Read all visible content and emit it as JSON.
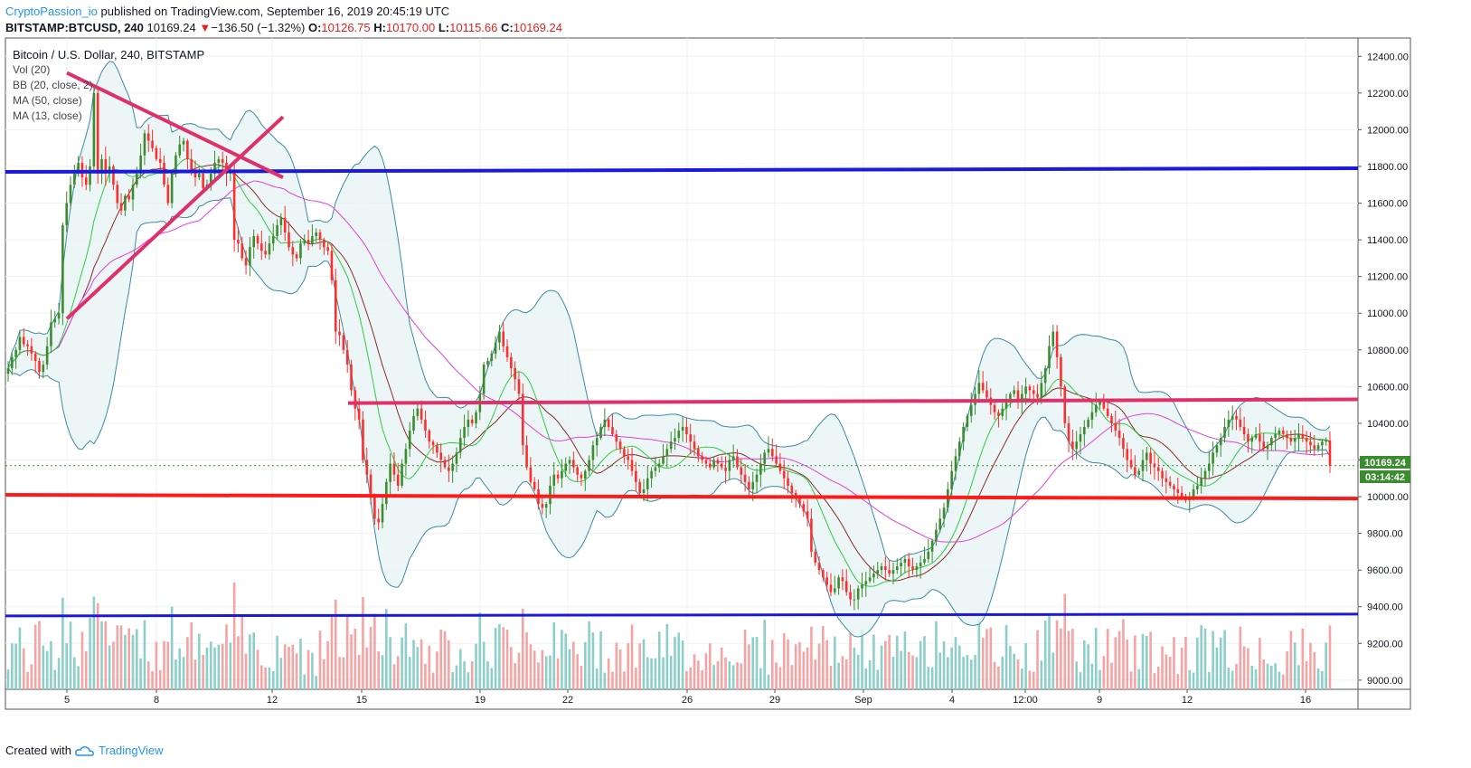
{
  "header": {
    "author": "CryptoPassion_io",
    "published_text": " published on TradingView.com, September 16, 2019 20:45:19 UTC",
    "symbol": "BITSTAMP:BTCUSD, 240",
    "last": "10169.24",
    "arrow": "▼",
    "change": "−136.50 (−1.32%)",
    "o_label": "O:",
    "o_value": "10126.75",
    "h_label": "H:",
    "h_value": "10170.00",
    "l_label": "L:",
    "l_value": "10115.66",
    "c_label": "C:",
    "c_value": "10169.24"
  },
  "legend": {
    "title": "Bitcoin / U.S. Dollar, 240, BITSTAMP",
    "items": [
      "Vol (20)",
      "BB (20, close, 2)",
      "MA (50, close)",
      "MA (13, close)"
    ]
  },
  "footer": {
    "created_with": "Created with",
    "brand": "TradingView"
  },
  "price_badge": {
    "price": "10169.24",
    "countdown": "03:14:42"
  },
  "colors": {
    "bull": "#3a8c2e",
    "bear": "#ff2d2d",
    "bb_band": "#3b8aa0",
    "bb_fill": "#e8f4f4",
    "ma50": "#e040e0",
    "ma13": "#2ecc40",
    "basis": "#8b2a2a",
    "res_blue": "#1a1adf",
    "mag_line": "#e0306a",
    "red_line": "#ff1a1a",
    "vol_up": "#8ccfc8",
    "vol_down": "#f5a3a3"
  },
  "chart_data": {
    "type": "candlestick",
    "title": "Bitcoin / U.S. Dollar, 240, BITSTAMP",
    "ylim": [
      8950,
      12500
    ],
    "y_ticks": [
      "12400.00",
      "12200.00",
      "12000.00",
      "11800.00",
      "11600.00",
      "11400.00",
      "11200.00",
      "11000.00",
      "10800.00",
      "10600.00",
      "10400.00",
      "10200.00",
      "10000.00",
      "9800.00",
      "9600.00",
      "9400.00",
      "9200.00",
      "9000.00"
    ],
    "x_ticks": [
      "5",
      "8",
      "12",
      "15",
      "19",
      "22",
      "26",
      "29",
      "Sep",
      "4",
      "12:00",
      "9",
      "12",
      "16"
    ],
    "candles_close": [
      10700,
      10760,
      10800,
      10870,
      10830,
      10820,
      10780,
      10740,
      10680,
      10720,
      10820,
      10950,
      10970,
      11000,
      11480,
      11600,
      11700,
      11760,
      11820,
      11740,
      11700,
      11800,
      12200,
      11760,
      11840,
      11760,
      11800,
      11700,
      11600,
      11560,
      11640,
      11620,
      11700,
      11760,
      11860,
      11980,
      11940,
      11900,
      11840,
      11820,
      11700,
      11600,
      11760,
      11860,
      11920,
      11940,
      11840,
      11780,
      11740,
      11760,
      11680,
      11700,
      11760,
      11820,
      11840,
      11820,
      11760,
      11780,
      11400,
      11380,
      11300,
      11260,
      11360,
      11420,
      11380,
      11340,
      11320,
      11380,
      11420,
      11480,
      11520,
      11440,
      11360,
      11320,
      11300,
      11380,
      11400,
      11380,
      11420,
      11440,
      11400,
      11360,
      11340,
      11180,
      10900,
      10880,
      10800,
      10720,
      10580,
      10480,
      10420,
      10200,
      10120,
      10000,
      9880,
      9860,
      9960,
      10080,
      10180,
      10120,
      10060,
      10180,
      10260,
      10360,
      10440,
      10480,
      10420,
      10360,
      10300,
      10280,
      10240,
      10200,
      10160,
      10140,
      10180,
      10240,
      10320,
      10380,
      10420,
      10400,
      10460,
      10560,
      10720,
      10740,
      10780,
      10840,
      10900,
      10820,
      10760,
      10700,
      10640,
      10560,
      10280,
      10160,
      10080,
      10040,
      9960,
      9940,
      9960,
      10060,
      10120,
      10100,
      10140,
      10180,
      10200,
      10160,
      10120,
      10100,
      10140,
      10200,
      10280,
      10320,
      10380,
      10420,
      10380,
      10340,
      10300,
      10260,
      10220,
      10200,
      10140,
      10080,
      10020,
      10040,
      10100,
      10140,
      10160,
      10180,
      10220,
      10260,
      10300,
      10320,
      10360,
      10380,
      10340,
      10300,
      10260,
      10220,
      10200,
      10180,
      10160,
      10200,
      10180,
      10160,
      10140,
      10200,
      10220,
      10160,
      10120,
      10080,
      10040,
      10080,
      10120,
      10180,
      10240,
      10260,
      10220,
      10180,
      10140,
      10100,
      10060,
      10020,
      10000,
      9960,
      9920,
      9880,
      9700,
      9640,
      9600,
      9560,
      9520,
      9480,
      9500,
      9560,
      9540,
      9480,
      9440,
      9440,
      9500,
      9520,
      9540,
      9560,
      9580,
      9600,
      9620,
      9600,
      9580,
      9600,
      9620,
      9640,
      9660,
      9620,
      9600,
      9620,
      9640,
      9660,
      9700,
      9760,
      9820,
      9880,
      9940,
      10040,
      10140,
      10220,
      10300,
      10380,
      10440,
      10500,
      10560,
      10620,
      10580,
      10540,
      10500,
      10460,
      10440,
      10480,
      10520,
      10560,
      10580,
      10520,
      10560,
      10600,
      10580,
      10560,
      10540,
      10620,
      10700,
      10820,
      10900,
      10760,
      10600,
      10400,
      10300,
      10260,
      10300,
      10340,
      10380,
      10420,
      10460,
      10500,
      10520,
      10480,
      10440,
      10400,
      10360,
      10320,
      10260,
      10200,
      10160,
      10120,
      10140,
      10200,
      10240,
      10180,
      10160,
      10140,
      10100,
      10080,
      10060,
      10040,
      10020,
      10000,
      9980,
      10000,
      10040,
      10060,
      10100,
      10140,
      10180,
      10240,
      10280,
      10320,
      10380,
      10420,
      10440,
      10420,
      10380,
      10340,
      10300,
      10320,
      10340,
      10300,
      10260,
      10280,
      10320,
      10340,
      10360,
      10340,
      10320,
      10300,
      10320,
      10340,
      10320,
      10300,
      10280,
      10260,
      10280,
      10300,
      10306,
      10169
    ]
  }
}
